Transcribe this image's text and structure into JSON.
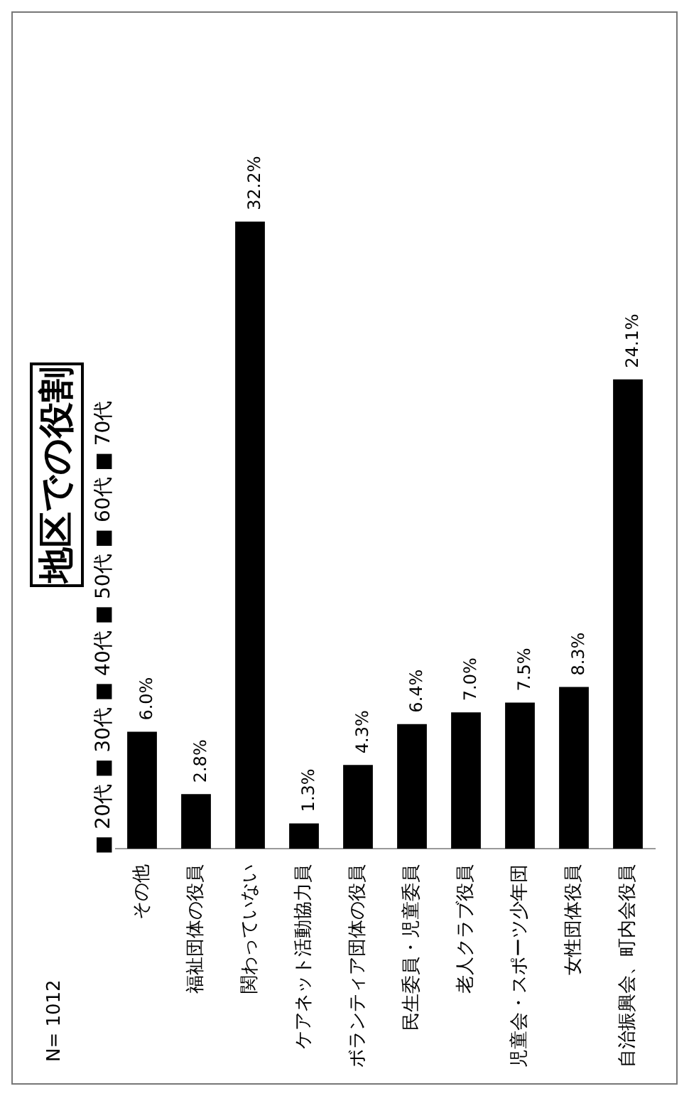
{
  "chart_data": {
    "type": "bar",
    "title": "地区での役割",
    "categories": [
      "その他",
      "福祉団体の役員",
      "関わっていない",
      "ケアネット活動協力員",
      "ボランティア団体の役員",
      "民生委員・児童委員",
      "老人クラブ役員",
      "児童会・スポーツ少年団",
      "女性団体役員",
      "自治振興会、町内会役員"
    ],
    "values": [
      6.0,
      2.8,
      32.2,
      1.3,
      4.3,
      6.4,
      7.0,
      7.5,
      8.3,
      24.1
    ],
    "value_labels": [
      "6.0%",
      "2.8%",
      "32.2%",
      "1.3%",
      "4.3%",
      "6.4%",
      "7.0%",
      "7.5%",
      "8.3%",
      "24.1%"
    ],
    "color": "#000000",
    "annotations": [
      "■ 20代 ■ 30代 ■ 40代 ■ 50代 ■ 60代 ■ 70代",
      "N= 1012"
    ],
    "grid": false,
    "legend": false
  }
}
